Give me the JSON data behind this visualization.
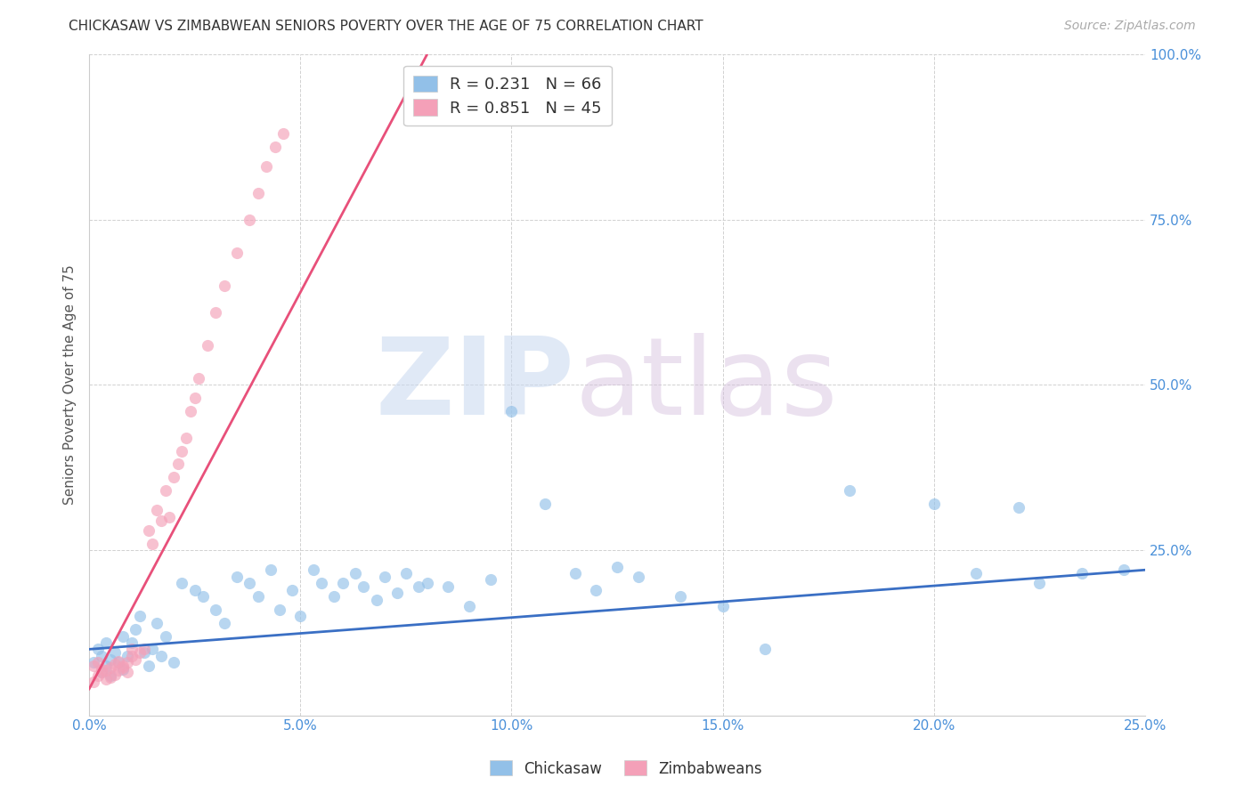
{
  "title": "CHICKASAW VS ZIMBABWEAN SENIORS POVERTY OVER THE AGE OF 75 CORRELATION CHART",
  "source": "Source: ZipAtlas.com",
  "ylabel": "Seniors Poverty Over the Age of 75",
  "xlim": [
    0.0,
    0.25
  ],
  "ylim": [
    0.0,
    1.0
  ],
  "xticks": [
    0.0,
    0.05,
    0.1,
    0.15,
    0.2,
    0.25
  ],
  "yticks": [
    0.0,
    0.25,
    0.5,
    0.75,
    1.0
  ],
  "xtick_labels": [
    "0.0%",
    "5.0%",
    "10.0%",
    "15.0%",
    "20.0%",
    "25.0%"
  ],
  "ytick_labels": [
    "",
    "25.0%",
    "50.0%",
    "75.0%",
    "100.0%"
  ],
  "chickasaw_R": 0.231,
  "chickasaw_N": 66,
  "zimbabwean_R": 0.851,
  "zimbabwean_N": 45,
  "chickasaw_color": "#92C0E8",
  "zimbabwean_color": "#F4A0B8",
  "chickasaw_line_color": "#3A6FC4",
  "zimbabwean_line_color": "#E8507A",
  "background_color": "#FFFFFF",
  "grid_color": "#CCCCCC",
  "title_fontsize": 11,
  "axis_label_fontsize": 11,
  "tick_fontsize": 11,
  "legend_fontsize": 13,
  "source_fontsize": 10,
  "chickasaw_x": [
    0.001,
    0.002,
    0.003,
    0.003,
    0.004,
    0.004,
    0.005,
    0.005,
    0.006,
    0.007,
    0.008,
    0.008,
    0.009,
    0.01,
    0.011,
    0.012,
    0.013,
    0.014,
    0.015,
    0.016,
    0.017,
    0.018,
    0.02,
    0.022,
    0.025,
    0.027,
    0.03,
    0.032,
    0.035,
    0.038,
    0.04,
    0.043,
    0.045,
    0.048,
    0.05,
    0.053,
    0.055,
    0.058,
    0.06,
    0.063,
    0.065,
    0.068,
    0.07,
    0.073,
    0.075,
    0.078,
    0.08,
    0.085,
    0.09,
    0.095,
    0.1,
    0.108,
    0.115,
    0.12,
    0.125,
    0.13,
    0.14,
    0.15,
    0.16,
    0.18,
    0.2,
    0.21,
    0.22,
    0.225,
    0.235,
    0.245
  ],
  "chickasaw_y": [
    0.08,
    0.1,
    0.09,
    0.065,
    0.075,
    0.11,
    0.085,
    0.06,
    0.095,
    0.08,
    0.12,
    0.07,
    0.09,
    0.11,
    0.13,
    0.15,
    0.095,
    0.075,
    0.1,
    0.14,
    0.09,
    0.12,
    0.08,
    0.2,
    0.19,
    0.18,
    0.16,
    0.14,
    0.21,
    0.2,
    0.18,
    0.22,
    0.16,
    0.19,
    0.15,
    0.22,
    0.2,
    0.18,
    0.2,
    0.215,
    0.195,
    0.175,
    0.21,
    0.185,
    0.215,
    0.195,
    0.2,
    0.195,
    0.165,
    0.205,
    0.46,
    0.32,
    0.215,
    0.19,
    0.225,
    0.21,
    0.18,
    0.165,
    0.1,
    0.34,
    0.32,
    0.215,
    0.315,
    0.2,
    0.215,
    0.22
  ],
  "zimbabwean_x": [
    0.001,
    0.001,
    0.002,
    0.002,
    0.003,
    0.003,
    0.004,
    0.004,
    0.005,
    0.005,
    0.006,
    0.006,
    0.007,
    0.007,
    0.008,
    0.008,
    0.009,
    0.009,
    0.01,
    0.01,
    0.011,
    0.012,
    0.013,
    0.014,
    0.015,
    0.016,
    0.017,
    0.018,
    0.019,
    0.02,
    0.021,
    0.022,
    0.023,
    0.024,
    0.025,
    0.026,
    0.028,
    0.03,
    0.032,
    0.035,
    0.038,
    0.04,
    0.042,
    0.044,
    0.046
  ],
  "zimbabwean_y": [
    0.05,
    0.075,
    0.06,
    0.08,
    0.065,
    0.07,
    0.055,
    0.068,
    0.058,
    0.072,
    0.062,
    0.078,
    0.068,
    0.082,
    0.072,
    0.075,
    0.065,
    0.08,
    0.09,
    0.1,
    0.085,
    0.095,
    0.1,
    0.28,
    0.26,
    0.31,
    0.295,
    0.34,
    0.3,
    0.36,
    0.38,
    0.4,
    0.42,
    0.46,
    0.48,
    0.51,
    0.56,
    0.61,
    0.65,
    0.7,
    0.75,
    0.79,
    0.83,
    0.86,
    0.88
  ],
  "zimb_line_x0": 0.0,
  "zimb_line_y0": 0.04,
  "zimb_line_x1": 0.08,
  "zimb_line_y1": 1.0,
  "chick_line_x0": 0.0,
  "chick_line_y0": 0.1,
  "chick_line_x1": 0.25,
  "chick_line_y1": 0.22
}
